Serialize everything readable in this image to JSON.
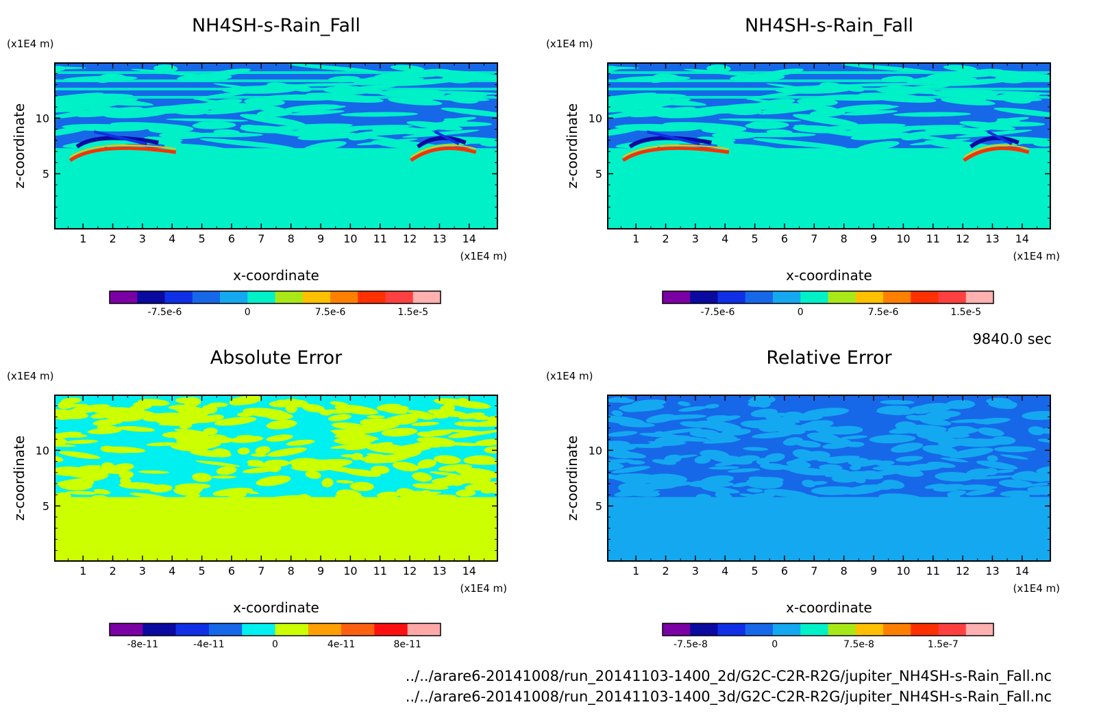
{
  "footer": {
    "time": "9840.0 sec",
    "files": [
      "../../arare6-20141008/run_20141103-1400_2d/G2C-C2R-R2G/jupiter_NH4SH-s-Rain_Fall.nc",
      "../../arare6-20141008/run_20141103-1400_3d/G2C-C2R-R2G/jupiter_NH4SH-s-Rain_Fall.nc"
    ]
  },
  "chart_data": [
    {
      "type": "heatmap",
      "title": "NH4SH-s-Rain_Fall",
      "xlabel": "x-coordinate",
      "ylabel": "z-coordinate",
      "x_unit": "(x1E4 m)",
      "y_unit": "(x1E4 m)",
      "xlim": [
        0.05,
        14.95
      ],
      "ylim": [
        0.05,
        14.95
      ],
      "x_ticks": [
        1,
        2,
        3,
        4,
        5,
        6,
        7,
        8,
        9,
        10,
        11,
        12,
        13,
        14
      ],
      "y_ticks": [
        5,
        10
      ],
      "colorbar": {
        "colors": [
          "#7b00a3",
          "#0a0aa0",
          "#1030e6",
          "#1768e8",
          "#14a8f0",
          "#00f0c8",
          "#a8e818",
          "#ffc000",
          "#ff8000",
          "#ff3000",
          "#ff4040",
          "#ffb0b0"
        ],
        "tick_values": [
          -7.5e-06,
          0,
          7.5e-06,
          1.5e-05
        ],
        "tick_labels": [
          "-7.5e-6",
          "0",
          "7.5e-6",
          "1.5e-5"
        ],
        "vmin": -1.25e-05,
        "vmax": 1.75e-05
      },
      "field": {
        "background": "#00f0c8",
        "layered_color": "#1768e8",
        "layer_boundary_z": 7.3
      }
    },
    {
      "type": "heatmap",
      "title": "NH4SH-s-Rain_Fall",
      "xlabel": "x-coordinate",
      "ylabel": "z-coordinate",
      "x_unit": "(x1E4 m)",
      "y_unit": "(x1E4 m)",
      "xlim": [
        0.05,
        14.95
      ],
      "ylim": [
        0.05,
        14.95
      ],
      "x_ticks": [
        1,
        2,
        3,
        4,
        5,
        6,
        7,
        8,
        9,
        10,
        11,
        12,
        13,
        14
      ],
      "y_ticks": [
        5,
        10
      ],
      "colorbar": {
        "colors": [
          "#7b00a3",
          "#0a0aa0",
          "#1030e6",
          "#1768e8",
          "#14a8f0",
          "#00f0c8",
          "#a8e818",
          "#ffc000",
          "#ff8000",
          "#ff3000",
          "#ff4040",
          "#ffb0b0"
        ],
        "tick_values": [
          -7.5e-06,
          0,
          7.5e-06,
          1.5e-05
        ],
        "tick_labels": [
          "-7.5e-6",
          "0",
          "7.5e-6",
          "1.5e-5"
        ],
        "vmin": -1.25e-05,
        "vmax": 1.75e-05
      },
      "field": {
        "background": "#00f0c8",
        "layered_color": "#1768e8",
        "layer_boundary_z": 7.3
      }
    },
    {
      "type": "heatmap",
      "title": "Absolute Error",
      "xlabel": "x-coordinate",
      "ylabel": "z-coordinate",
      "x_unit": "(x1E4 m)",
      "y_unit": "(x1E4 m)",
      "xlim": [
        0.05,
        14.95
      ],
      "ylim": [
        0.05,
        14.95
      ],
      "x_ticks": [
        1,
        2,
        3,
        4,
        5,
        6,
        7,
        8,
        9,
        10,
        11,
        12,
        13,
        14
      ],
      "y_ticks": [
        5,
        10
      ],
      "colorbar": {
        "colors": [
          "#7b00a3",
          "#0a0aa0",
          "#1030e6",
          "#1768e8",
          "#00f0f0",
          "#ccff00",
          "#ffa000",
          "#ff6010",
          "#ff1010",
          "#ffa8a8"
        ],
        "tick_values": [
          -8e-11,
          -4e-11,
          0,
          4e-11,
          8e-11
        ],
        "tick_labels": [
          "-8e-11",
          "-4e-11",
          "0",
          "4e-11",
          "8e-11"
        ],
        "vmin": -1e-10,
        "vmax": 1e-10
      },
      "field": {
        "background": "#ccff00",
        "layered_color": "#00f0f0",
        "layer_boundary_z": 5.8
      }
    },
    {
      "type": "heatmap",
      "title": "Relative Error",
      "xlabel": "x-coordinate",
      "ylabel": "z-coordinate",
      "x_unit": "(x1E4 m)",
      "y_unit": "(x1E4 m)",
      "xlim": [
        0.05,
        14.95
      ],
      "ylim": [
        0.05,
        14.95
      ],
      "x_ticks": [
        1,
        2,
        3,
        4,
        5,
        6,
        7,
        8,
        9,
        10,
        11,
        12,
        13,
        14
      ],
      "y_ticks": [
        5,
        10
      ],
      "colorbar": {
        "colors": [
          "#7b00a3",
          "#0a0aa0",
          "#1030e6",
          "#1768e8",
          "#14a8f0",
          "#00f0c8",
          "#a8e818",
          "#ffc000",
          "#ff8000",
          "#ff3000",
          "#ff4040",
          "#ffb0b0"
        ],
        "tick_values": [
          -7.5e-08,
          0,
          7.5e-08,
          1.5e-07
        ],
        "tick_labels": [
          "-7.5e-8",
          "0",
          "7.5e-8",
          "1.5e-7"
        ],
        "vmin": -1e-07,
        "vmax": 1.95e-07
      },
      "field": {
        "background": "#14a8f0",
        "layered_color": "#1768e8",
        "layer_boundary_z": 5.8
      }
    }
  ]
}
